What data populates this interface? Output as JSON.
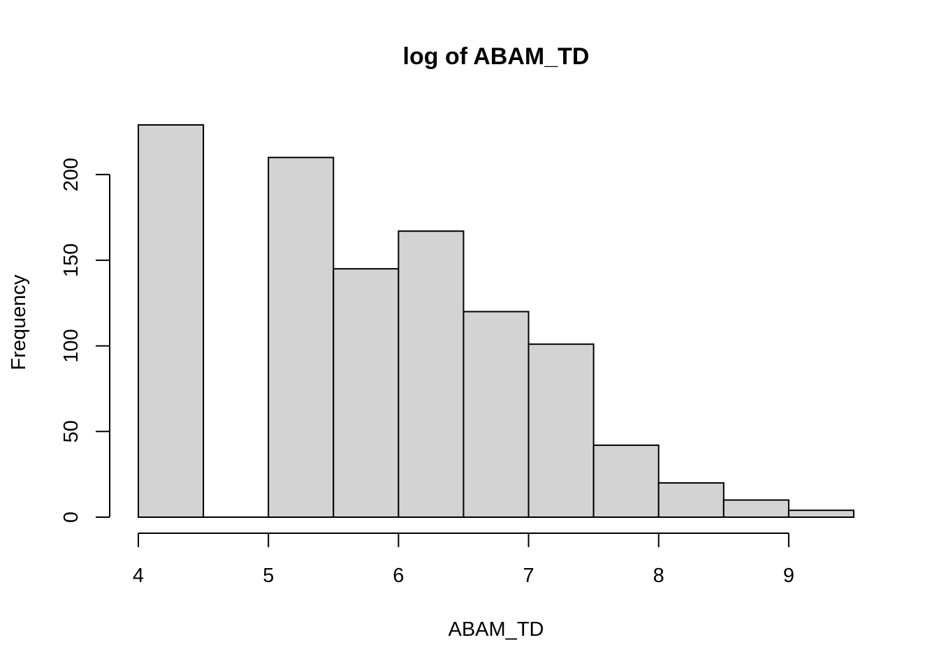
{
  "chart_data": {
    "type": "bar",
    "subtype": "histogram",
    "title": "log of ABAM_TD",
    "xlabel": "ABAM_TD",
    "ylabel": "Frequency",
    "bins": [
      {
        "x0": 4.0,
        "x1": 4.5,
        "count": 229
      },
      {
        "x0": 4.5,
        "x1": 5.0,
        "count": 0
      },
      {
        "x0": 5.0,
        "x1": 5.5,
        "count": 210
      },
      {
        "x0": 5.5,
        "x1": 6.0,
        "count": 145
      },
      {
        "x0": 6.0,
        "x1": 6.5,
        "count": 167
      },
      {
        "x0": 6.5,
        "x1": 7.0,
        "count": 120
      },
      {
        "x0": 7.0,
        "x1": 7.5,
        "count": 101
      },
      {
        "x0": 7.5,
        "x1": 8.0,
        "count": 42
      },
      {
        "x0": 8.0,
        "x1": 8.5,
        "count": 20
      },
      {
        "x0": 8.5,
        "x1": 9.0,
        "count": 10
      },
      {
        "x0": 9.0,
        "x1": 9.5,
        "count": 4
      }
    ],
    "xlim": [
      4.0,
      9.5
    ],
    "xticks": [
      4,
      5,
      6,
      7,
      8,
      9
    ],
    "ylim": [
      0,
      229
    ],
    "yticks": [
      0,
      50,
      100,
      150,
      200
    ],
    "bar_fill": "#d3d3d3",
    "bar_stroke": "#000000",
    "grid": false,
    "legend": "none"
  }
}
